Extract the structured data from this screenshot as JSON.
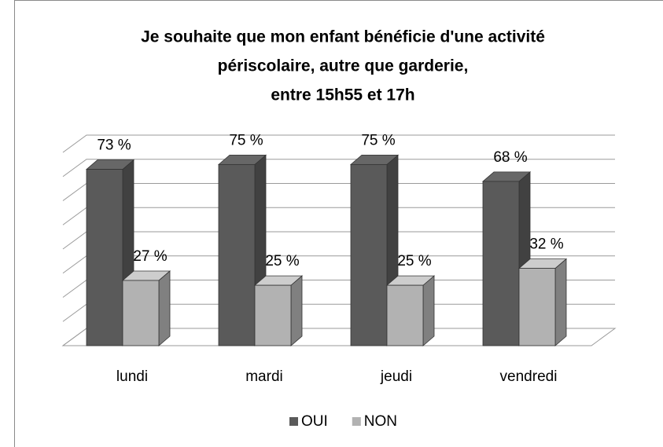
{
  "chart_data": {
    "type": "bar3d",
    "title": [
      "Je souhaite que mon enfant bénéficie d'une activité",
      "périscolaire, autre que garderie,",
      "entre 15h55 et 17h"
    ],
    "categories": [
      "lundi",
      "mardi",
      "jeudi",
      "vendredi"
    ],
    "series": [
      {
        "name": "OUI",
        "color": "#5a5a5a",
        "values": [
          73,
          75,
          75,
          68
        ],
        "value_labels": [
          "73 %",
          "75 %",
          "75 %",
          "68 %"
        ]
      },
      {
        "name": "NON",
        "color": "#b2b2b2",
        "values": [
          27,
          25,
          25,
          32
        ],
        "value_labels": [
          "27 %",
          "25 %",
          "25 %",
          "32 %"
        ]
      }
    ],
    "ylim": [
      0,
      80
    ],
    "yticks": [
      0,
      10,
      20,
      30,
      40,
      50,
      60,
      70,
      80
    ],
    "grid": true,
    "legend": "bottom"
  }
}
